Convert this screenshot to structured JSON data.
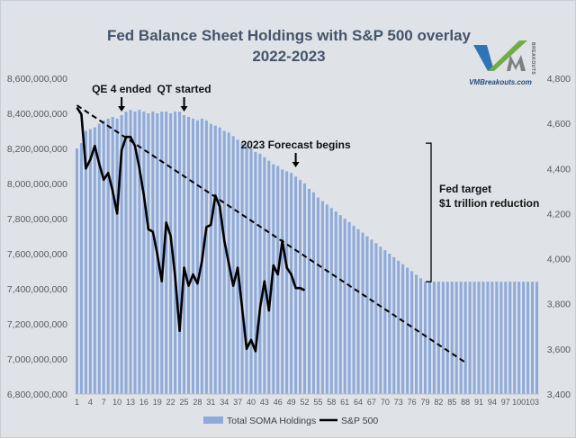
{
  "chart_data": {
    "type": "bar",
    "title": "Fed Balance Sheet Holdings with S&P 500 overlay",
    "subtitle": "2022-2023",
    "left_axis": {
      "min": 6800000000000,
      "max": 8600000000000,
      "ticks": [
        "8,600,000,000",
        "8,400,000,000",
        "8,200,000,000",
        "8,000,000,000",
        "7,800,000,000",
        "7,600,000,000",
        "7,400,000,000",
        "7,200,000,000",
        "7,000,000,000",
        "6,800,000,000"
      ]
    },
    "right_axis": {
      "min": 3400,
      "max": 4800,
      "ticks": [
        "4,800",
        "4,600",
        "4,400",
        "4,200",
        "4,000",
        "3,800",
        "3,600",
        "3,400"
      ]
    },
    "x_ticks": [
      "1",
      "4",
      "7",
      "10",
      "13",
      "16",
      "19",
      "22",
      "25",
      "28",
      "31",
      "34",
      "37",
      "40",
      "43",
      "46",
      "49",
      "52",
      "55",
      "58",
      "61",
      "64",
      "67",
      "70",
      "73",
      "76",
      "79",
      "82",
      "85",
      "88",
      "91",
      "94",
      "97",
      "100",
      "103"
    ],
    "x": [
      1,
      2,
      3,
      4,
      5,
      6,
      7,
      8,
      9,
      10,
      11,
      12,
      13,
      14,
      15,
      16,
      17,
      18,
      19,
      20,
      21,
      22,
      23,
      24,
      25,
      26,
      27,
      28,
      29,
      30,
      31,
      32,
      33,
      34,
      35,
      36,
      37,
      38,
      39,
      40,
      41,
      42,
      43,
      44,
      45,
      46,
      47,
      48,
      49,
      50,
      51,
      52,
      53,
      54,
      55,
      56,
      57,
      58,
      59,
      60,
      61,
      62,
      63,
      64,
      65,
      66,
      67,
      68,
      69,
      70,
      71,
      72,
      73,
      74,
      75,
      76,
      77,
      78,
      79,
      80,
      81,
      82,
      83,
      84,
      85,
      86,
      87,
      88,
      89,
      90,
      91,
      92,
      93,
      94,
      95,
      96,
      97,
      98,
      99,
      100,
      101,
      102,
      103,
      104
    ],
    "series": [
      {
        "name": "Total SOMA Holdings",
        "type": "bar",
        "axis": "left",
        "color": "#8eaadb",
        "values": [
          8200000000000,
          8230000000000,
          8300000000000,
          8310000000000,
          8320000000000,
          8340000000000,
          8360000000000,
          8370000000000,
          8380000000000,
          8370000000000,
          8390000000000,
          8410000000000,
          8420000000000,
          8410000000000,
          8420000000000,
          8410000000000,
          8400000000000,
          8410000000000,
          8400000000000,
          8410000000000,
          8410000000000,
          8400000000000,
          8410000000000,
          8410000000000,
          8390000000000,
          8380000000000,
          8370000000000,
          8360000000000,
          8370000000000,
          8360000000000,
          8340000000000,
          8330000000000,
          8320000000000,
          8300000000000,
          8290000000000,
          8270000000000,
          8250000000000,
          8230000000000,
          8220000000000,
          8200000000000,
          8180000000000,
          8170000000000,
          8150000000000,
          8130000000000,
          8110000000000,
          8100000000000,
          8080000000000,
          8070000000000,
          8060000000000,
          8040000000000,
          8020000000000,
          8000000000000,
          7970000000000,
          7950000000000,
          7920000000000,
          7900000000000,
          7880000000000,
          7860000000000,
          7840000000000,
          7820000000000,
          7800000000000,
          7780000000000,
          7760000000000,
          7740000000000,
          7720000000000,
          7700000000000,
          7680000000000,
          7660000000000,
          7640000000000,
          7620000000000,
          7600000000000,
          7580000000000,
          7560000000000,
          7540000000000,
          7520000000000,
          7500000000000,
          7480000000000,
          7460000000000,
          7440000000000,
          7440000000000,
          7440000000000,
          7440000000000,
          7440000000000,
          7440000000000,
          7440000000000,
          7440000000000,
          7440000000000,
          7440000000000,
          7440000000000,
          7440000000000,
          7440000000000,
          7440000000000,
          7440000000000,
          7440000000000,
          7440000000000,
          7440000000000,
          7440000000000,
          7440000000000,
          7440000000000,
          7440000000000,
          7440000000000,
          7440000000000,
          7440000000000,
          7440000000000
        ]
      },
      {
        "name": "S&P 500",
        "type": "line",
        "axis": "right",
        "color": "#000000",
        "x": [
          1,
          2,
          3,
          4,
          5,
          6,
          7,
          8,
          9,
          10,
          11,
          12,
          13,
          14,
          15,
          16,
          17,
          18,
          19,
          20,
          21,
          22,
          23,
          24,
          25,
          26,
          27,
          28,
          29,
          30,
          31,
          32,
          33,
          34,
          35,
          36,
          37,
          38,
          39,
          40,
          41,
          42,
          43,
          44,
          45,
          46,
          47,
          48,
          49,
          50,
          51,
          52
        ],
        "values": [
          4670,
          4640,
          4400,
          4440,
          4500,
          4420,
          4350,
          4380,
          4300,
          4200,
          4480,
          4540,
          4540,
          4500,
          4400,
          4280,
          4130,
          4120,
          4020,
          3900,
          4160,
          4100,
          3920,
          3680,
          3960,
          3880,
          3930,
          3890,
          3990,
          4140,
          4150,
          4280,
          4230,
          4080,
          3980,
          3880,
          3960,
          3780,
          3600,
          3640,
          3590,
          3780,
          3900,
          3770,
          3970,
          3930,
          4080,
          3960,
          3930,
          3870,
          3870,
          3860
        ]
      }
    ],
    "trend_line": {
      "x": [
        1,
        88
      ],
      "y": [
        4680,
        3540
      ],
      "axis": "right",
      "style": "dashed"
    },
    "annotations": [
      {
        "text": "QE 4 ended",
        "x": 11,
        "arrow": true
      },
      {
        "text": "QT started",
        "x": 25,
        "arrow": true
      },
      {
        "text": "2023 Forecast begins",
        "x": 50,
        "arrow": true
      },
      {
        "text": "Fed target",
        "bracket": true
      },
      {
        "text": "$1 trillion reduction",
        "bracket": true
      }
    ],
    "legend": {
      "position": "bottom",
      "items": [
        "Total SOMA Holdings",
        "S&P 500"
      ]
    },
    "grid": false
  },
  "logo": {
    "brand": "VMBreakouts.com",
    "side_text": "BREAKOUTS"
  }
}
